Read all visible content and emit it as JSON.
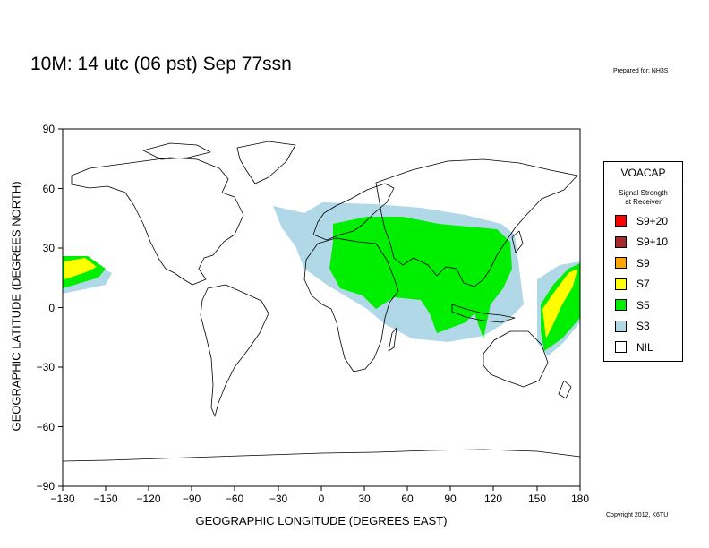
{
  "title": "10M:  14 utc (06 pst) Sep 77ssn",
  "prepared_for": "Prepared for: NH3S",
  "copyright": "Copyright 2012, K6TU",
  "map": {
    "xlabel": "GEOGRAPHIC LONGITUDE (DEGREES EAST)",
    "ylabel": "GEOGRAPHIC LATITUDE (DEGREES NORTH)",
    "x_ticks": [
      "−180",
      "−150",
      "−120",
      "−90",
      "−60",
      "−30",
      "0",
      "30",
      "60",
      "90",
      "120",
      "150",
      "180"
    ],
    "y_ticks": [
      "90",
      "60",
      "30",
      "0",
      "−30",
      "−60",
      "−90"
    ],
    "xlim": [
      -180,
      180
    ],
    "ylim": [
      -90,
      90
    ],
    "projection": "equirectangular",
    "coverage_colors": {
      "S5": "#00ee00",
      "S7": "#ffff00",
      "S3": "#b0d8e6"
    }
  },
  "legend": {
    "title": "VOACAP",
    "subtitle_line1": "Signal Strength",
    "subtitle_line2": "at Receiver",
    "items": [
      {
        "label": "S9+20",
        "color": "#ff0000"
      },
      {
        "label": "S9+10",
        "color": "#a52a2a"
      },
      {
        "label": "S9",
        "color": "#ffa500"
      },
      {
        "label": "S7",
        "color": "#ffff00"
      },
      {
        "label": "S5",
        "color": "#00ee00"
      },
      {
        "label": "S3",
        "color": "#b0d8e6"
      },
      {
        "label": "NIL",
        "color": "#ffffff"
      }
    ]
  }
}
